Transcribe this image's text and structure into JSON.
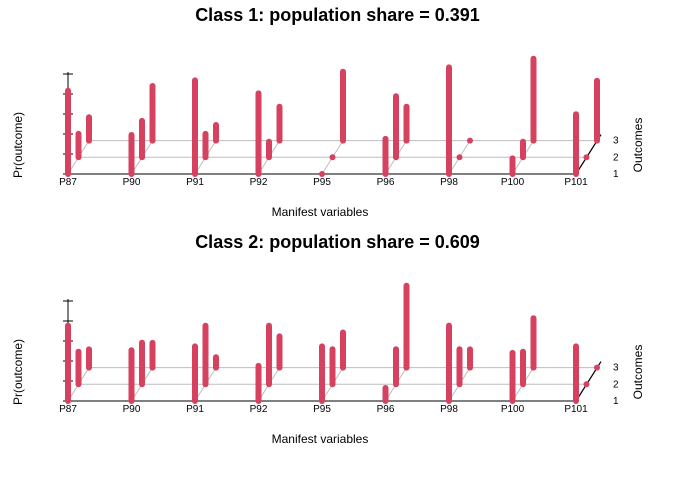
{
  "chart_data": [
    {
      "type": "bar",
      "title": "Class 1: population share = 0.391",
      "xlabel": "Manifest variables",
      "ylabel": "Pr(outcome)",
      "zlabel": "Outcomes",
      "categories": [
        "P87",
        "P90",
        "P91",
        "P92",
        "P95",
        "P96",
        "P98",
        "P100",
        "P101"
      ],
      "outcomes": [
        "1",
        "2",
        "3"
      ],
      "series": [
        {
          "name": "1",
          "values": [
            0.64,
            0.3,
            0.72,
            0.62,
            0.02,
            0.27,
            0.82,
            0.12,
            0.46
          ]
        },
        {
          "name": "2",
          "values": [
            0.18,
            0.28,
            0.18,
            0.12,
            0.02,
            0.47,
            0.02,
            0.12,
            0.02
          ]
        },
        {
          "name": "3",
          "values": [
            0.18,
            0.42,
            0.12,
            0.26,
            0.53,
            0.26,
            0.02,
            0.63,
            0.46
          ]
        }
      ],
      "color": "#d6415f"
    },
    {
      "type": "bar",
      "title": "Class 2: population share = 0.609",
      "xlabel": "Manifest variables",
      "ylabel": "Pr(outcome)",
      "zlabel": "Outcomes",
      "categories": [
        "P87",
        "P90",
        "P91",
        "P92",
        "P95",
        "P96",
        "P98",
        "P100",
        "P101"
      ],
      "outcomes": [
        "1",
        "2",
        "3"
      ],
      "series": [
        {
          "name": "1",
          "values": [
            0.58,
            0.39,
            0.42,
            0.27,
            0.42,
            0.1,
            0.58,
            0.37,
            0.42
          ]
        },
        {
          "name": "2",
          "values": [
            0.25,
            0.32,
            0.45,
            0.45,
            0.27,
            0.27,
            0.27,
            0.25,
            0.02
          ]
        },
        {
          "name": "3",
          "values": [
            0.14,
            0.19,
            0.08,
            0.24,
            0.27,
            0.63,
            0.14,
            0.38,
            0.02
          ]
        }
      ],
      "color": "#d6415f"
    }
  ]
}
